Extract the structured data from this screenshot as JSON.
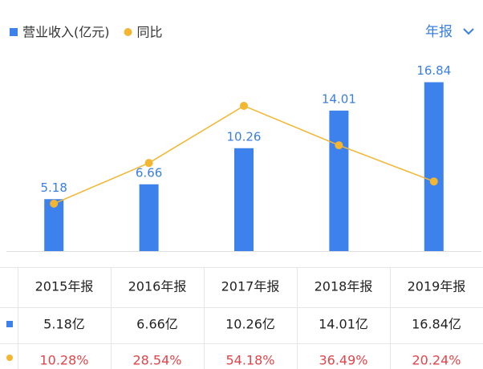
{
  "chart_data": {
    "type": "bar",
    "categories": [
      "2015年报",
      "2016年报",
      "2017年报",
      "2018年报",
      "2019年报"
    ],
    "series": [
      {
        "name": "营业收入(亿元)",
        "type": "bar",
        "color": "#3d82ec",
        "values": [
          5.18,
          6.66,
          10.26,
          14.01,
          16.84
        ]
      },
      {
        "name": "同比",
        "type": "line",
        "axis": "y2",
        "color": "#f4b530",
        "values": [
          10.28,
          28.54,
          54.18,
          36.49,
          20.24
        ]
      }
    ],
    "ylim": [
      0,
      18
    ],
    "y2lim": [
      -11,
      70
    ],
    "grid": false,
    "legend": "top-left"
  },
  "period_selector": "年报",
  "table": {
    "rows": [
      [
        "5.18亿",
        "6.66亿",
        "10.26亿",
        "14.01亿",
        "16.84亿"
      ],
      [
        "10.28%",
        "28.54%",
        "54.18%",
        "36.49%",
        "20.24%"
      ]
    ]
  }
}
